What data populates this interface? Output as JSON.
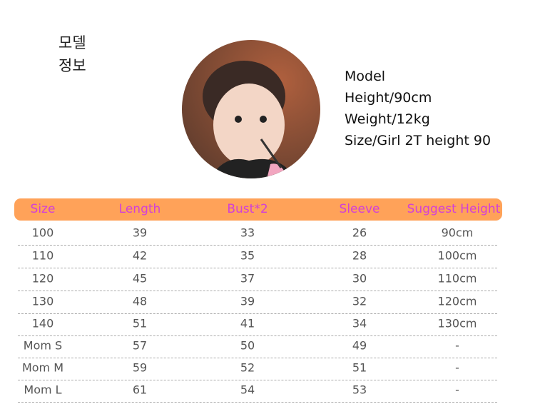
{
  "model_label": [
    "모델",
    "정보"
  ],
  "model_info": [
    "Model",
    "Height/90cm",
    "Weight/12kg",
    "Size/Girl 2T height 90"
  ],
  "table": {
    "header": [
      "Size",
      "Length",
      "Bust*2",
      "Sleeve",
      "Suggest Height"
    ],
    "rows": [
      [
        100,
        39,
        33,
        26,
        "90cm"
      ],
      [
        110,
        42,
        35,
        28,
        "100cm"
      ],
      [
        120,
        45,
        37,
        30,
        "110cm"
      ],
      [
        130,
        48,
        39,
        32,
        "120cm"
      ],
      [
        140,
        51,
        41,
        34,
        "130cm"
      ],
      [
        "Mom S",
        57,
        50,
        49,
        "-"
      ],
      [
        "Mom M",
        59,
        52,
        51,
        "-"
      ],
      [
        "Mom L",
        61,
        54,
        53,
        "-"
      ]
    ]
  }
}
